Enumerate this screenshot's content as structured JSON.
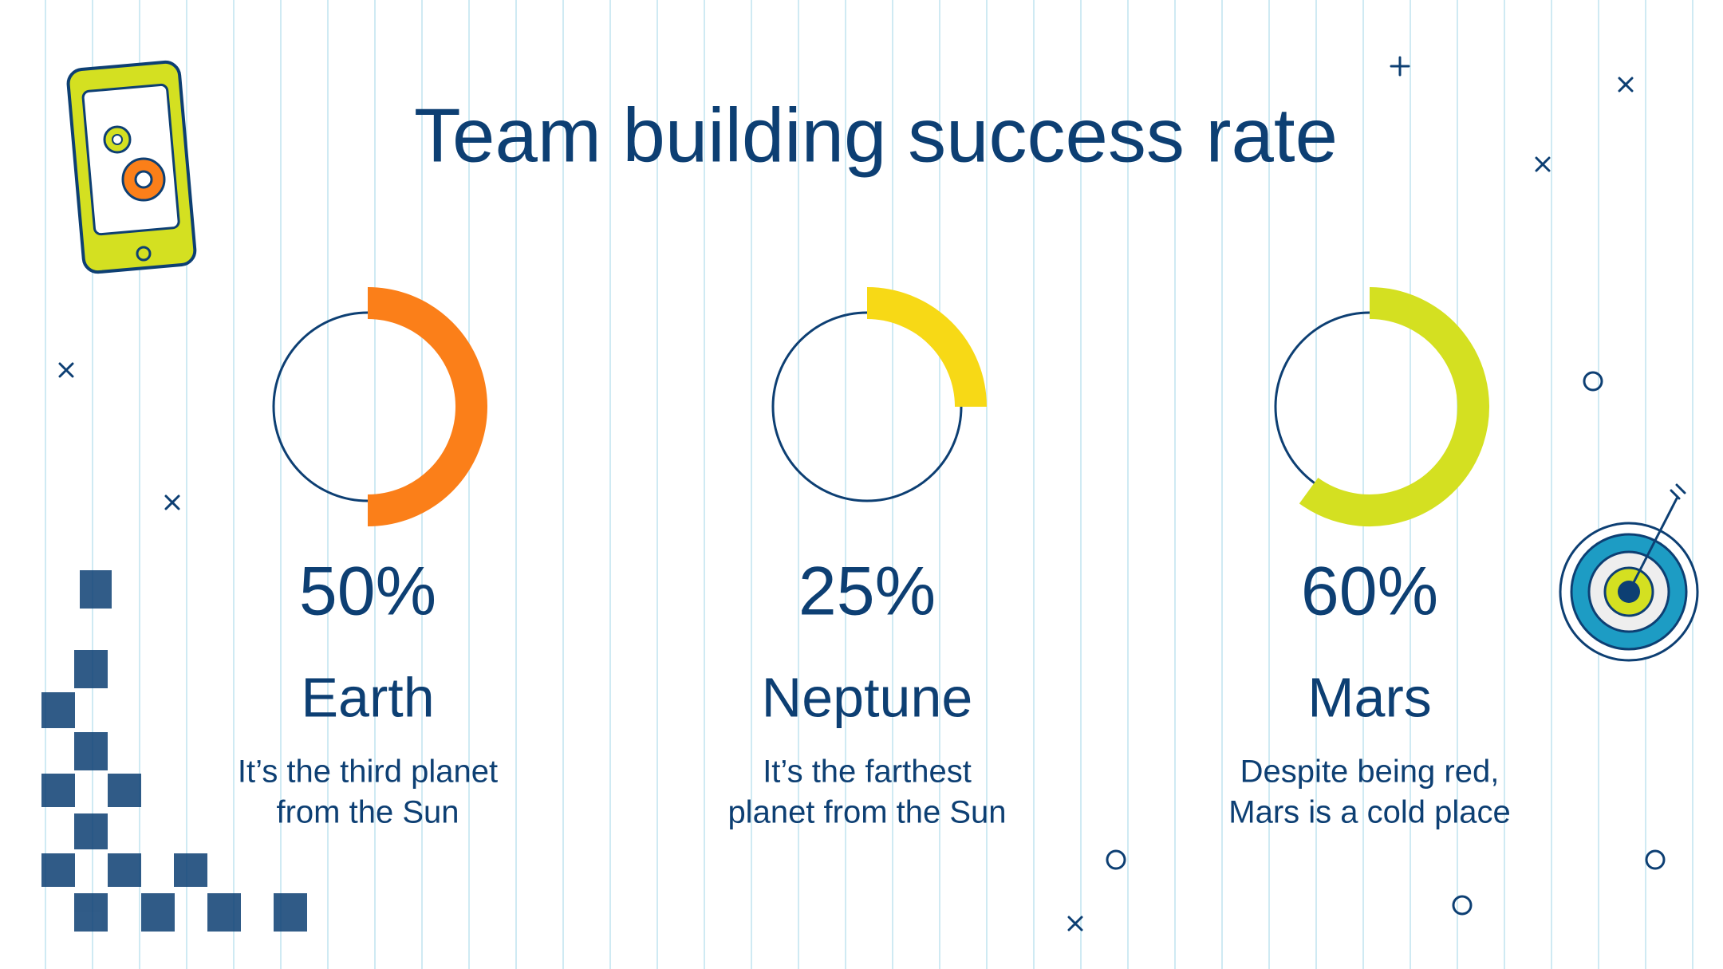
{
  "title": "Team building success rate",
  "chart_data": [
    {
      "type": "donut",
      "title": "Earth",
      "subtitle": [
        "It’s the third planet",
        "from the Sun"
      ],
      "values": [
        50
      ],
      "value_labels": [
        "50%"
      ],
      "color": "#fb7f19"
    },
    {
      "type": "donut",
      "title": "Neptune",
      "subtitle": [
        "It’s the farthest",
        "planet from the Sun"
      ],
      "values": [
        25
      ],
      "value_labels": [
        "25%"
      ],
      "color": "#f7d916"
    },
    {
      "type": "donut",
      "title": "Mars",
      "subtitle": [
        "Despite being red,",
        "Mars is a cold place"
      ],
      "values": [
        60
      ],
      "value_labels": [
        "60%"
      ],
      "color": "#d4e021"
    }
  ]
}
